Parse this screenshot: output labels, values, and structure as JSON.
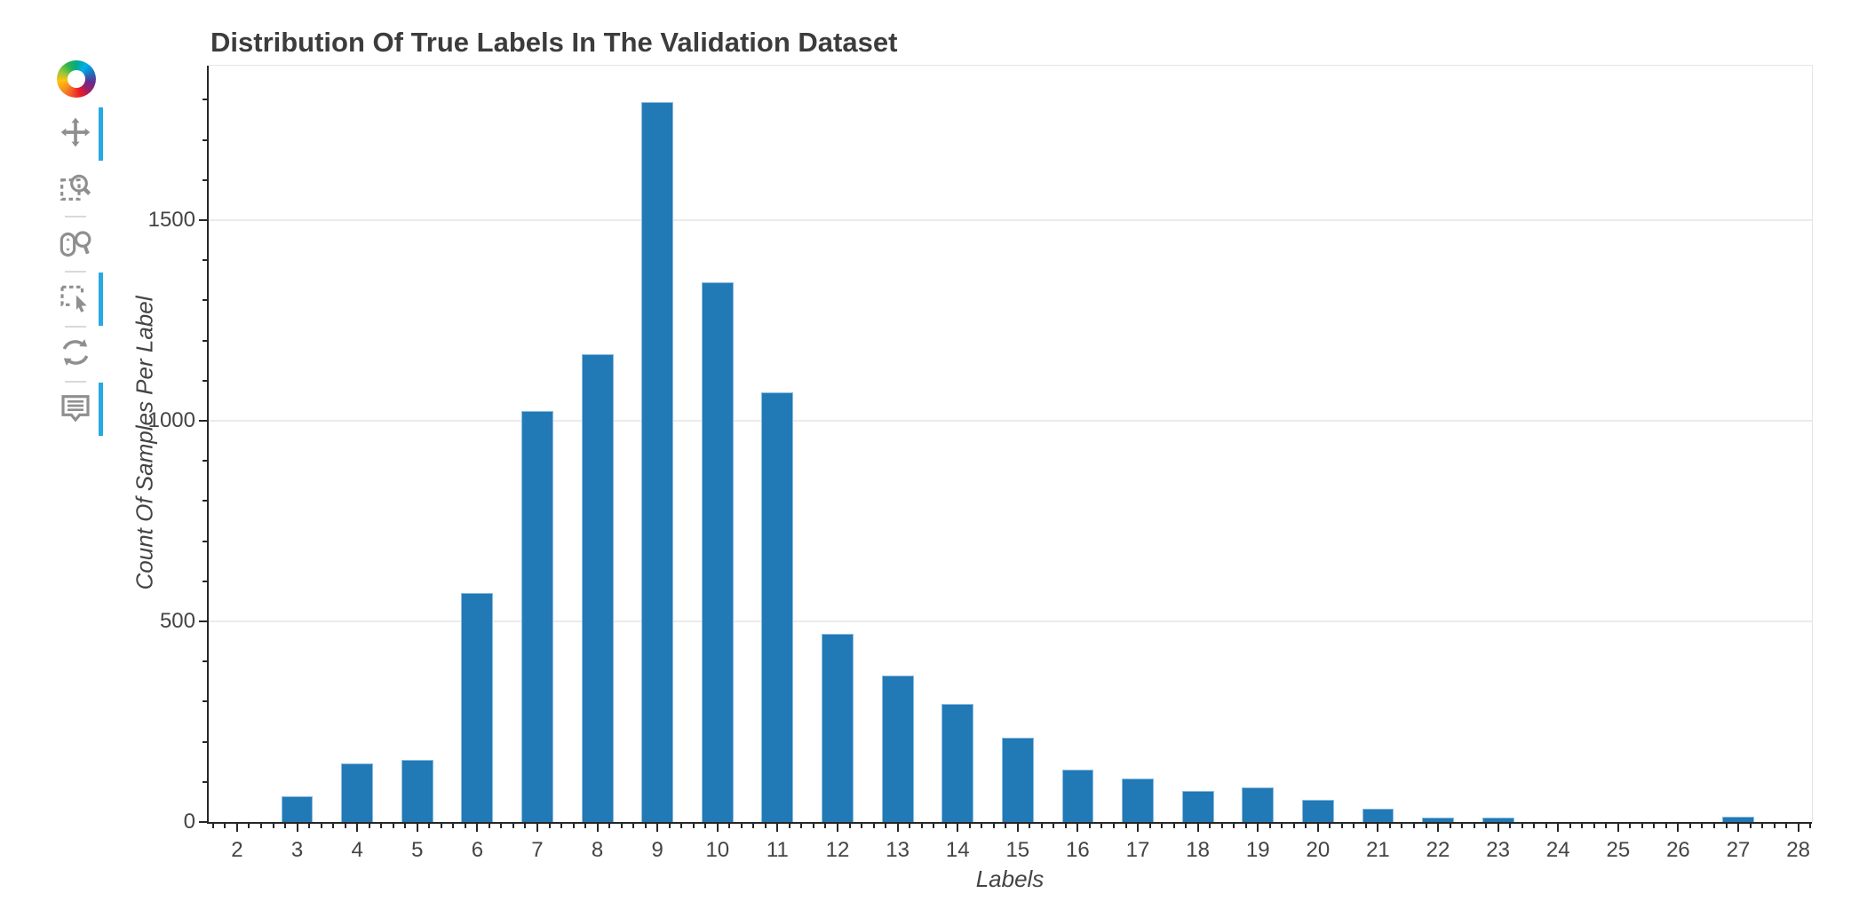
{
  "toolbar": {
    "logo_label": "bokeh",
    "active_color": "#26aae1",
    "icon_color": "#8f8f8f",
    "tools": [
      {
        "name": "pan",
        "icon": "pan-icon",
        "active": true,
        "separator_before": false
      },
      {
        "name": "box-zoom",
        "icon": "box-zoom-icon",
        "active": false,
        "separator_before": false
      },
      {
        "name": "wheel-zoom",
        "icon": "wheel-zoom-icon",
        "active": false,
        "separator_before": true
      },
      {
        "name": "box-select",
        "icon": "box-select-icon",
        "active": true,
        "separator_before": true
      },
      {
        "name": "reset",
        "icon": "reset-icon",
        "active": false,
        "separator_before": true
      },
      {
        "name": "hover",
        "icon": "hover-icon",
        "active": true,
        "separator_before": true
      }
    ]
  },
  "chart_data": {
    "type": "bar",
    "title": "Distribution Of True Labels In The Validation Dataset",
    "xlabel": "Labels",
    "ylabel": "Count Of Samples Per Label",
    "categories": [
      2,
      3,
      4,
      5,
      6,
      7,
      8,
      9,
      10,
      11,
      12,
      13,
      14,
      15,
      16,
      17,
      18,
      19,
      20,
      21,
      22,
      23,
      24,
      25,
      26,
      27,
      28
    ],
    "values": [
      0,
      65,
      145,
      155,
      570,
      1025,
      1165,
      1795,
      1345,
      1070,
      470,
      365,
      295,
      210,
      130,
      108,
      77,
      87,
      55,
      33,
      12,
      12,
      0,
      0,
      0,
      13,
      0
    ],
    "bar_color": "#2179b5",
    "bar_width": 0.53,
    "x_range": [
      1.527,
      28.227
    ],
    "y_range": [
      0,
      1885
    ],
    "y_ticks": [
      0,
      500,
      1000,
      1500
    ],
    "y_minor_step": 100,
    "x_minor_step": 0.2,
    "grid": "horizontal",
    "legend": "none"
  }
}
